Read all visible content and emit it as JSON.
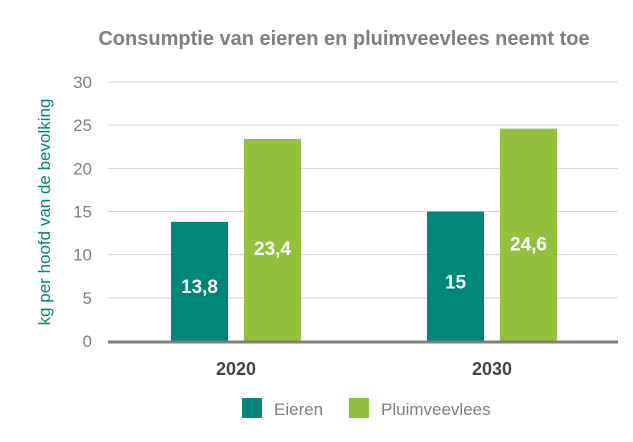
{
  "chart_data": {
    "type": "bar",
    "title": "Consumptie van eieren en pluimveevlees neemt toe",
    "xlabel": "",
    "ylabel": "kg per hoofd van de bevolking",
    "ylim": [
      0,
      30
    ],
    "yticks": [
      0,
      5,
      10,
      15,
      20,
      25,
      30
    ],
    "grid": true,
    "legend": "bottom-center",
    "categories": [
      "2020",
      "2030"
    ],
    "series": [
      {
        "name": "Eieren",
        "color": "#00877a",
        "values": [
          13.8,
          15
        ],
        "labels": [
          "13,8",
          "15"
        ]
      },
      {
        "name": "Pluimveevlees",
        "color": "#93c13e",
        "values": [
          23.4,
          24.6
        ],
        "labels": [
          "23,4",
          "24,6"
        ]
      }
    ]
  }
}
